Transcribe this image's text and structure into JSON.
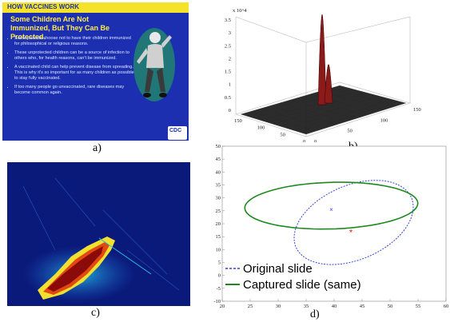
{
  "captions": {
    "a": "a)",
    "b": "b)",
    "c": "c)",
    "d": "d)"
  },
  "slide": {
    "header": "HOW VACCINES WORK",
    "title": "Some Children Are Not Immunized, But They Can Be Protected.",
    "bullets": [
      "Some parents choose not to have their children immunized for philosophical or religious reasons.",
      "These unprotected children can be a source of infection to others who, for health reasons, can't be immunized.",
      "A vaccinated child can help prevent disease from spreading. This is why it's so important for as many children as possible to stay fully vaccinated.",
      "If too many people go unvaccinated, rare diseases may become common again."
    ],
    "logo": "CDC",
    "colors": {
      "background": "#1c2fb0",
      "header": "#f4e32a",
      "title": "#ffe94a"
    }
  },
  "chart_data": [
    {
      "type": "surface",
      "z_label": "x 10^4",
      "z_ticks": [
        "0",
        "0.5",
        "1",
        "1.5",
        "2",
        "2.5",
        "3",
        "3.5"
      ],
      "xy_ticks": [
        "0",
        "50",
        "100",
        "150"
      ],
      "peaks": [
        {
          "height": 3.5,
          "color": "#8b1a1a"
        },
        {
          "height": 1.5,
          "color": "#8b1a1a"
        }
      ],
      "baseline_color": "#111111"
    },
    {
      "type": "heatmap",
      "colors": [
        "#0a1a7a",
        "#1e5fd0",
        "#22c0e0",
        "#f2e030",
        "#e04a10",
        "#8b0a0a"
      ]
    },
    {
      "type": "scatter",
      "xlim": [
        20,
        60
      ],
      "ylim": [
        -10,
        50
      ],
      "x_ticks": [
        20,
        25,
        30,
        35,
        40,
        45,
        50,
        55,
        60
      ],
      "y_ticks": [
        -10,
        -5,
        0,
        5,
        10,
        15,
        20,
        25,
        30,
        35,
        40,
        45,
        50
      ],
      "series": [
        {
          "name": "Original slide",
          "style": "dashed",
          "color": "#3344dd",
          "center": [
            43.5,
            20.5
          ],
          "semi_axes": [
            9.5,
            17
          ],
          "angle_deg": -20,
          "marker": {
            "x": 39.5,
            "y": 25.5,
            "symbol": "x"
          }
        },
        {
          "name": "Captured slide (same)",
          "style": "solid",
          "color": "#1e8a1e",
          "center": [
            39.5,
            27
          ],
          "semi_axes": [
            15.5,
            9
          ],
          "angle_deg": 5,
          "marker": {
            "x": 43,
            "y": 17,
            "symbol": "*",
            "color": "#dd2222"
          }
        }
      ],
      "legend_position": "bottom-left"
    }
  ]
}
